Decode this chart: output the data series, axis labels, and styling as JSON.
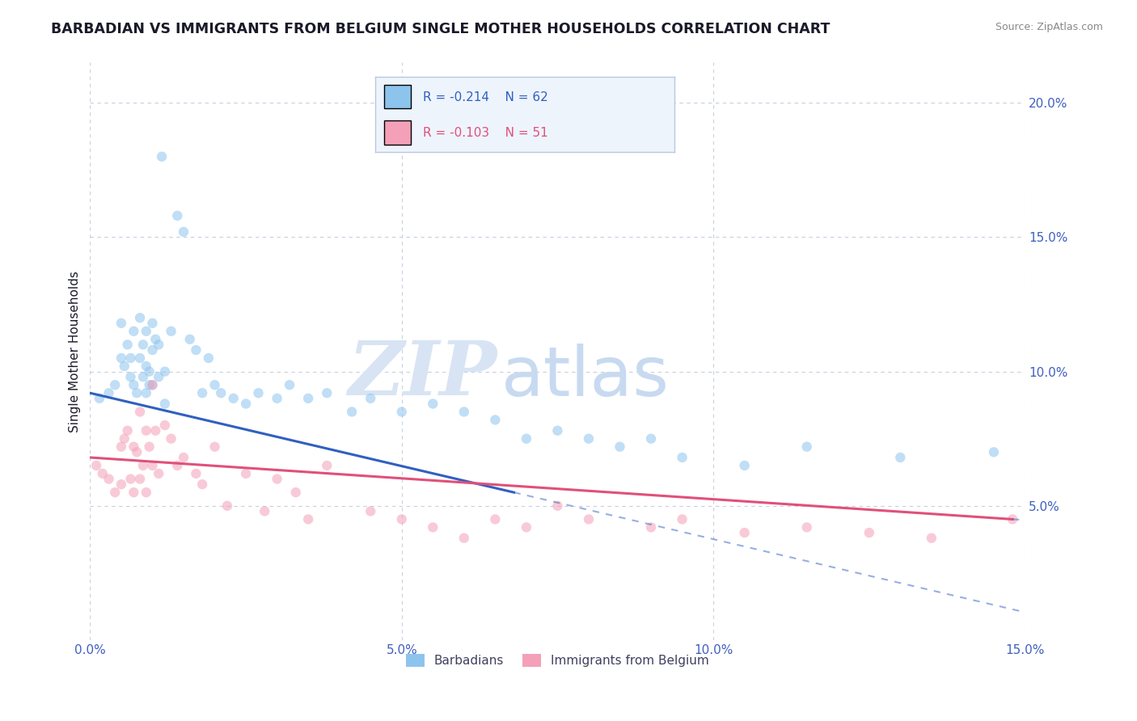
{
  "title": "BARBADIAN VS IMMIGRANTS FROM BELGIUM SINGLE MOTHER HOUSEHOLDS CORRELATION CHART",
  "source": "Source: ZipAtlas.com",
  "ylabel": "Single Mother Households",
  "xlabel_vals": [
    0.0,
    5.0,
    10.0,
    15.0
  ],
  "ylabel_vals": [
    5.0,
    10.0,
    15.0,
    20.0
  ],
  "xmin": 0.0,
  "xmax": 15.0,
  "ymin": 0.0,
  "ymax": 21.5,
  "series1_label": "Barbadians",
  "series1_color": "#8dc4ed",
  "series1_line_color": "#3060c0",
  "series1_R": -0.214,
  "series1_N": 62,
  "series2_label": "Immigrants from Belgium",
  "series2_color": "#f4a0b8",
  "series2_line_color": "#e0507a",
  "series2_R": -0.103,
  "series2_N": 51,
  "watermark_zip": "ZIP",
  "watermark_atlas": "atlas",
  "watermark_color_zip": "#d8e4f4",
  "watermark_color_atlas": "#c8daf0",
  "background_color": "#ffffff",
  "grid_color": "#c8d0de",
  "title_color": "#1a1a2a",
  "axis_label_color": "#4060c0",
  "legend_box_color": "#eef4fc",
  "marker_size": 80,
  "marker_alpha": 0.55,
  "series1_x": [
    0.15,
    0.3,
    0.4,
    0.5,
    0.5,
    0.55,
    0.6,
    0.65,
    0.65,
    0.7,
    0.7,
    0.75,
    0.8,
    0.8,
    0.85,
    0.85,
    0.9,
    0.9,
    0.9,
    0.95,
    0.95,
    1.0,
    1.0,
    1.0,
    1.05,
    1.1,
    1.1,
    1.15,
    1.2,
    1.2,
    1.3,
    1.4,
    1.5,
    1.6,
    1.7,
    1.8,
    1.9,
    2.0,
    2.1,
    2.3,
    2.5,
    2.7,
    3.0,
    3.2,
    3.5,
    3.8,
    4.2,
    4.5,
    5.0,
    5.5,
    6.0,
    6.5,
    7.0,
    7.5,
    8.0,
    8.5,
    9.0,
    9.5,
    10.5,
    11.5,
    13.0,
    14.5
  ],
  "series1_y": [
    9.0,
    9.2,
    9.5,
    11.8,
    10.5,
    10.2,
    11.0,
    10.5,
    9.8,
    11.5,
    9.5,
    9.2,
    12.0,
    10.5,
    11.0,
    9.8,
    11.5,
    10.2,
    9.2,
    10.0,
    9.5,
    11.8,
    10.8,
    9.5,
    11.2,
    11.0,
    9.8,
    18.0,
    10.0,
    8.8,
    11.5,
    15.8,
    15.2,
    11.2,
    10.8,
    9.2,
    10.5,
    9.5,
    9.2,
    9.0,
    8.8,
    9.2,
    9.0,
    9.5,
    9.0,
    9.2,
    8.5,
    9.0,
    8.5,
    8.8,
    8.5,
    8.2,
    7.5,
    7.8,
    7.5,
    7.2,
    7.5,
    6.8,
    6.5,
    7.2,
    6.8,
    7.0
  ],
  "series2_x": [
    0.1,
    0.2,
    0.3,
    0.4,
    0.5,
    0.5,
    0.55,
    0.6,
    0.65,
    0.7,
    0.7,
    0.75,
    0.8,
    0.8,
    0.85,
    0.9,
    0.9,
    0.95,
    1.0,
    1.0,
    1.05,
    1.1,
    1.2,
    1.3,
    1.4,
    1.5,
    1.7,
    1.8,
    2.0,
    2.2,
    2.5,
    2.8,
    3.0,
    3.3,
    3.5,
    3.8,
    4.5,
    5.0,
    5.5,
    6.0,
    6.5,
    7.0,
    7.5,
    8.0,
    9.0,
    9.5,
    10.5,
    11.5,
    12.5,
    13.5,
    14.8
  ],
  "series2_y": [
    6.5,
    6.2,
    6.0,
    5.5,
    7.2,
    5.8,
    7.5,
    7.8,
    6.0,
    7.2,
    5.5,
    7.0,
    8.5,
    6.0,
    6.5,
    7.8,
    5.5,
    7.2,
    9.5,
    6.5,
    7.8,
    6.2,
    8.0,
    7.5,
    6.5,
    6.8,
    6.2,
    5.8,
    7.2,
    5.0,
    6.2,
    4.8,
    6.0,
    5.5,
    4.5,
    6.5,
    4.8,
    4.5,
    4.2,
    3.8,
    4.5,
    4.2,
    5.0,
    4.5,
    4.2,
    4.5,
    4.0,
    4.2,
    4.0,
    3.8,
    4.5
  ],
  "trend1_x0": 0.0,
  "trend1_y0": 9.2,
  "trend1_x1": 6.8,
  "trend1_y1": 5.5,
  "trend1_solid_end": 6.8,
  "trend1_dash_end": 15.0,
  "trend2_x0": 0.0,
  "trend2_y0": 6.8,
  "trend2_x1": 14.8,
  "trend2_y1": 4.5,
  "trend2_solid_end": 14.8
}
